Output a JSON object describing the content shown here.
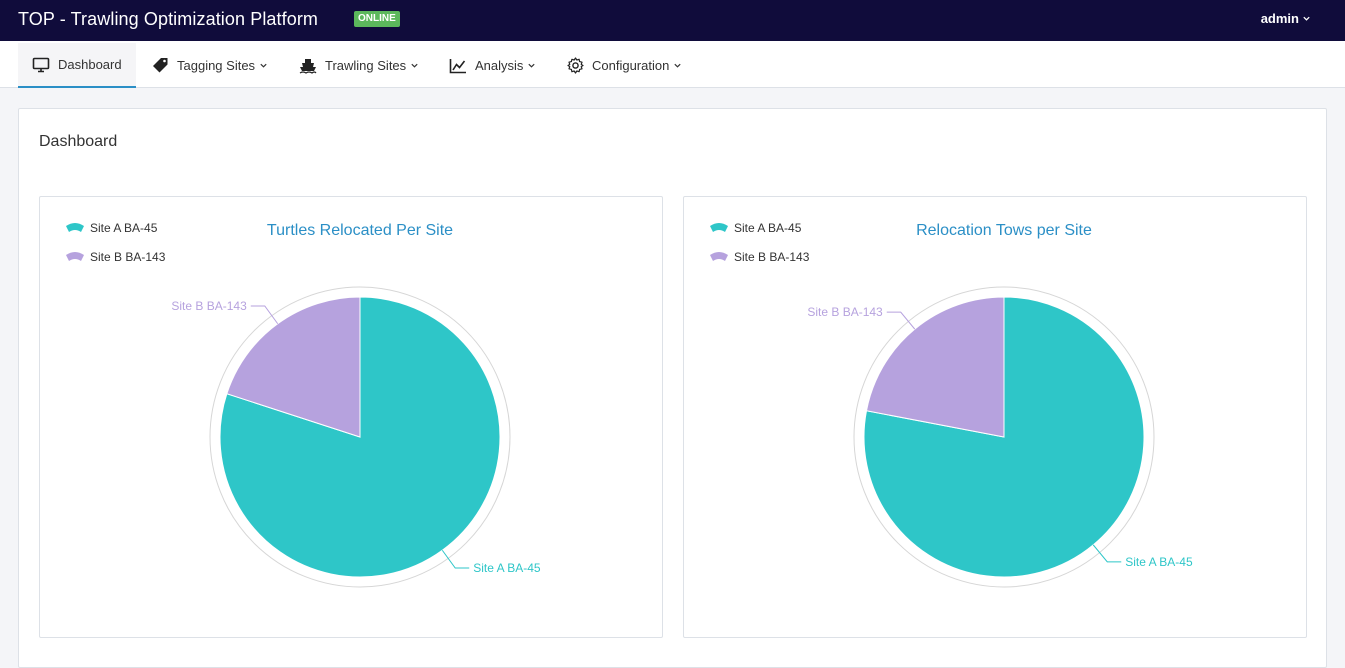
{
  "app": {
    "title": "TOP - Trawling Optimization Platform",
    "status": "ONLINE",
    "user": "admin"
  },
  "colors": {
    "topbar": "#100c3b",
    "accent": "#2b8fc6",
    "status": "#5cb85c",
    "siteA": "#2ec6c8",
    "siteB": "#b6a2de"
  },
  "nav": {
    "items": [
      {
        "label": "Dashboard",
        "icon": "monitor-icon"
      },
      {
        "label": "Tagging Sites",
        "icon": "tag-icon"
      },
      {
        "label": "Trawling Sites",
        "icon": "ship-icon"
      },
      {
        "label": "Analysis",
        "icon": "line-chart-icon"
      },
      {
        "label": "Configuration",
        "icon": "gear-icon"
      }
    ]
  },
  "page": {
    "title": "Dashboard"
  },
  "chart_data": [
    {
      "type": "pie",
      "title": "Turtles Relocated Per Site",
      "legend": "top-left",
      "slices": [
        {
          "name": "Site A BA-45",
          "value": 80
        },
        {
          "name": "Site B BA-143",
          "value": 20
        }
      ]
    },
    {
      "type": "pie",
      "title": "Relocation Tows per Site",
      "legend": "top-left",
      "slices": [
        {
          "name": "Site A BA-45",
          "value": 78
        },
        {
          "name": "Site B BA-143",
          "value": 22
        }
      ]
    }
  ]
}
